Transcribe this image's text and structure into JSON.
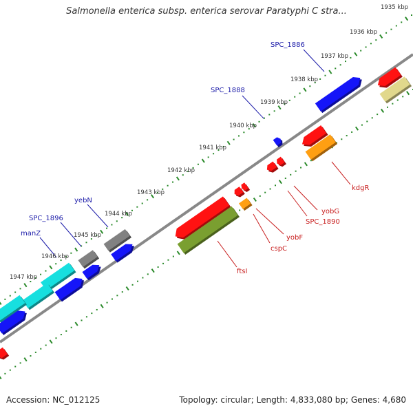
{
  "title": "Salmonella enterica subsp. enterica serovar Paratyphi C stra...",
  "footer": {
    "accession": "Accession: NC_012125",
    "summary": "Topology: circular; Length: 4,833,080 bp; Genes: 4,680"
  },
  "scale": {
    "ticks": [
      {
        "label": "1935 kbp"
      },
      {
        "label": "1936 kbp"
      },
      {
        "label": "1937 kbp"
      },
      {
        "label": "1938 kbp"
      },
      {
        "label": "1939 kbp"
      },
      {
        "label": "1940 kbp"
      },
      {
        "label": "1941 kbp"
      },
      {
        "label": "1942 kbp"
      },
      {
        "label": "1943 kbp"
      },
      {
        "label": "1944 kbp"
      },
      {
        "label": "1945 kbp"
      },
      {
        "label": "1946 kbp"
      },
      {
        "label": "1947 kbp"
      }
    ]
  },
  "gene_labels_forward": [
    {
      "text": "SPC_1886"
    },
    {
      "text": "SPC_1888"
    },
    {
      "text": "yebN"
    },
    {
      "text": "SPC_1896"
    },
    {
      "text": "manZ"
    }
  ],
  "gene_labels_reverse": [
    {
      "text": "kdgR"
    },
    {
      "text": "yobG"
    },
    {
      "text": "SPC_1890"
    },
    {
      "text": "yobF"
    },
    {
      "text": "cspC"
    },
    {
      "text": "ftsI"
    }
  ],
  "colors": {
    "backbone": "#888888",
    "forward_cds": "#1212d8",
    "reverse_cds": "#e81010",
    "trna": "#e88a10",
    "olive": "#6a8a2a",
    "khaki": "#c4bc7a",
    "cyan": "#14c2c2",
    "gray_feature": "#707070",
    "tick_green": "#2a8a2a"
  }
}
